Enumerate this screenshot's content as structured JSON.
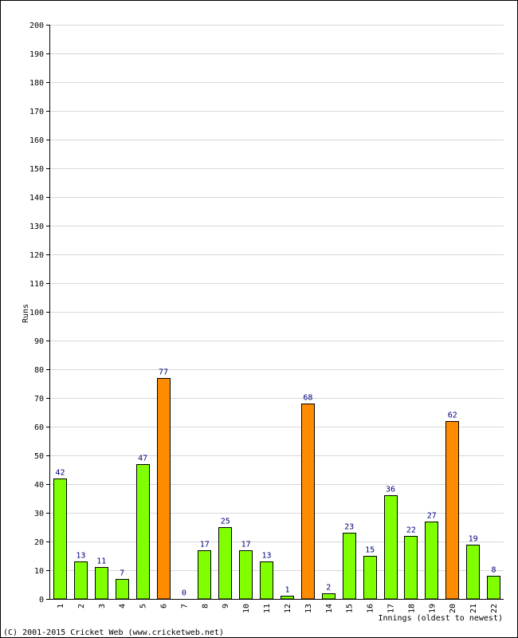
{
  "chart_data": {
    "type": "bar",
    "title": "",
    "xlabel": "Innings (oldest to newest)",
    "ylabel": "Runs",
    "ylim": [
      0,
      200
    ],
    "ytick_step": 10,
    "grid": true,
    "categories": [
      "1",
      "2",
      "3",
      "4",
      "5",
      "6",
      "7",
      "8",
      "9",
      "10",
      "11",
      "12",
      "13",
      "14",
      "15",
      "16",
      "17",
      "18",
      "19",
      "20",
      "21",
      "22"
    ],
    "values": [
      42,
      13,
      11,
      7,
      47,
      77,
      0,
      17,
      25,
      17,
      13,
      1,
      68,
      2,
      23,
      15,
      36,
      22,
      27,
      62,
      19,
      8
    ],
    "highlighted": [
      6,
      13,
      20
    ],
    "colors": {
      "bar_normal": "#80ff00",
      "bar_highlight": "#ff8c00",
      "bar_outline": "#000000",
      "value_label": "#000080",
      "grid": "#d8d8d8"
    }
  },
  "footer": {
    "copyright": "(C) 2001-2015 Cricket Web (www.cricketweb.net)"
  }
}
